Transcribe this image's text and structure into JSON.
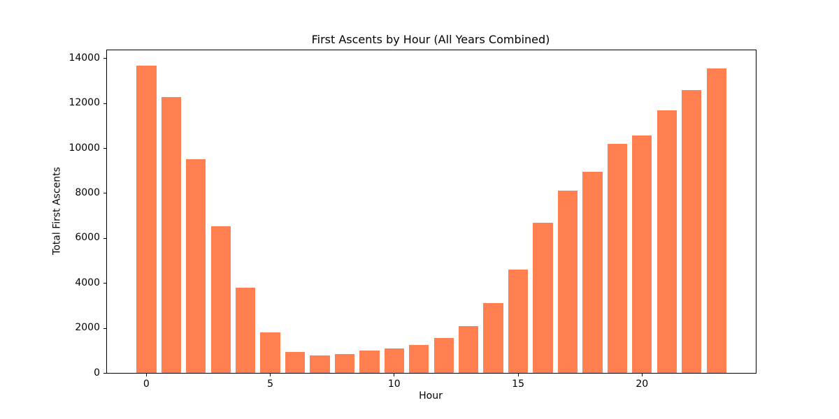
{
  "chart_data": {
    "type": "bar",
    "title": "First Ascents by Hour (All Years Combined)",
    "xlabel": "Hour",
    "ylabel": "Total First Ascents",
    "categories": [
      0,
      1,
      2,
      3,
      4,
      5,
      6,
      7,
      8,
      9,
      10,
      11,
      12,
      13,
      14,
      15,
      16,
      17,
      18,
      19,
      20,
      21,
      22,
      23
    ],
    "values": [
      13660,
      12260,
      9510,
      6510,
      3800,
      1800,
      920,
      770,
      830,
      1010,
      1080,
      1240,
      1560,
      2070,
      3110,
      4600,
      6680,
      8110,
      8950,
      10190,
      10570,
      11670,
      12570,
      13540
    ],
    "bar_color": "#FF7F50",
    "background_color": "#FFFFFF",
    "spine_color": "#000000",
    "text_color": "#000000",
    "bar_width_fraction": 0.8,
    "xlim": [
      -1.59,
      24.59
    ],
    "ylim": [
      0,
      14350
    ],
    "yticks": [
      0,
      2000,
      4000,
      6000,
      8000,
      10000,
      12000,
      14000
    ],
    "xticks": [
      0,
      5,
      10,
      15,
      20
    ],
    "grid": false,
    "legend": "none"
  }
}
